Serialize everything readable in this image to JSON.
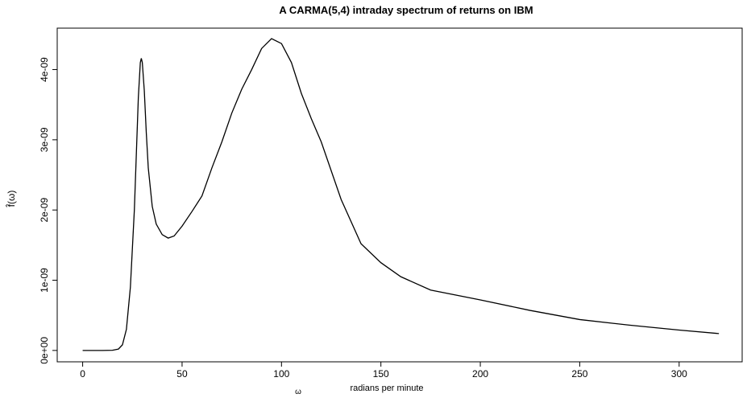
{
  "chart_data": {
    "type": "line",
    "title": "A CARMA(5,4) intraday spectrum of returns on IBM",
    "x_label": "ω",
    "x_note": "radians per minute",
    "y_label": "f̂(ω)",
    "x": [
      0,
      10,
      15,
      18,
      20,
      22,
      24,
      26,
      27,
      28,
      29,
      29.5,
      30,
      31,
      32,
      33,
      35,
      37,
      40,
      43,
      46,
      50,
      55,
      60,
      65,
      70,
      75,
      80,
      85,
      90,
      95,
      100,
      105,
      110,
      115,
      120,
      130,
      140,
      150,
      160,
      175,
      200,
      225,
      250,
      275,
      300,
      320
    ],
    "series": [
      {
        "color": "#000000",
        "values": [
          0,
          0,
          3e-12,
          2e-11,
          8e-11,
          3e-10,
          9e-10,
          2e-09,
          2.8e-09,
          3.6e-09,
          4.1e-09,
          4.16e-09,
          4.1e-09,
          3.7e-09,
          3.1e-09,
          2.6e-09,
          2.05e-09,
          1.8e-09,
          1.65e-09,
          1.6e-09,
          1.63e-09,
          1.77e-09,
          1.98e-09,
          2.2e-09,
          2.6e-09,
          2.97e-09,
          3.38e-09,
          3.72e-09,
          4e-09,
          4.3e-09,
          4.44e-09,
          4.37e-09,
          4.1e-09,
          3.66e-09,
          3.3e-09,
          2.97e-09,
          2.15e-09,
          1.52e-09,
          1.25e-09,
          1.05e-09,
          8.6e-10,
          7.2e-10,
          5.7e-10,
          4.4e-10,
          3.6e-10,
          2.9e-10,
          2.4e-10
        ]
      }
    ],
    "xlim": [
      -12.8,
      331.7
    ],
    "xticks": [
      0,
      50,
      100,
      150,
      200,
      250,
      300
    ],
    "ylim": [
      -1.62e-10,
      4.59e-09
    ],
    "yticks": [
      {
        "value": 0,
        "label": "0e+00"
      },
      {
        "value": 1e-09,
        "label": "1e-09"
      },
      {
        "value": 2e-09,
        "label": "2e-09"
      },
      {
        "value": 3e-09,
        "label": "3e-09"
      },
      {
        "value": 4e-09,
        "label": "4e-09"
      }
    ]
  }
}
